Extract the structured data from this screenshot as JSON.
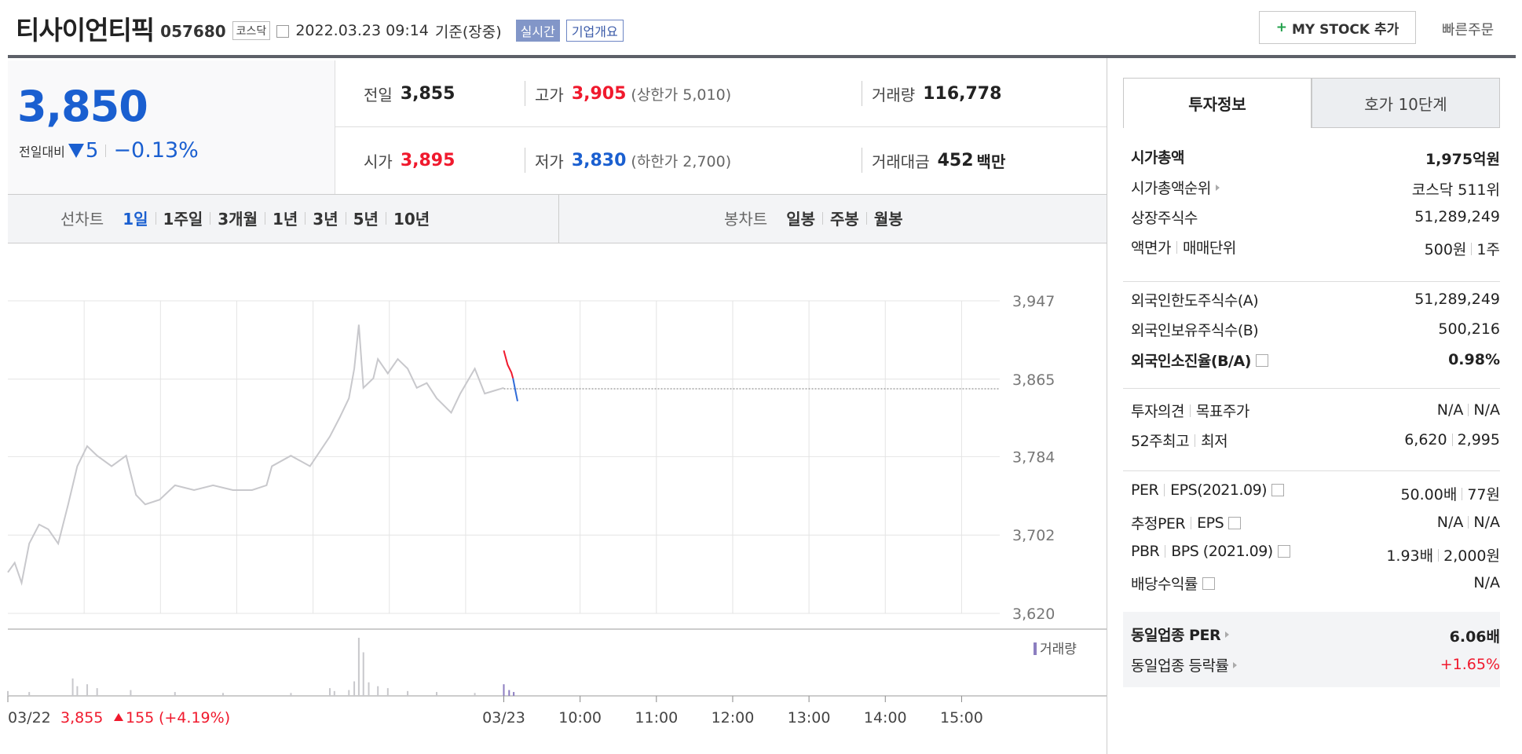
{
  "header": {
    "name": "티사이언티픽",
    "code": "057680",
    "market": "코스닥",
    "datetime": "2022.03.23 09:14",
    "basis": "기준(장중)",
    "realtime": "실시간",
    "company_info": "기업개요",
    "my_stock": "MY STOCK 추가",
    "quick_order": "빠른주문"
  },
  "price": {
    "current": "3,850",
    "change_label": "전일대비",
    "change": "5",
    "change_pct": "−0.13%"
  },
  "stats": [
    [
      {
        "label": "전일",
        "value": "3,855"
      },
      {
        "label": "고가",
        "value": "3,905",
        "note": "(상한가 5,010)",
        "color": "#f0192d"
      },
      {
        "label": "거래량",
        "value": "116,778"
      }
    ],
    [
      {
        "label": "시가",
        "value": "3,895",
        "color": "#f0192d"
      },
      {
        "label": "저가",
        "value": "3,830",
        "note": "(하한가 2,700)",
        "color": "#1a5fd0"
      },
      {
        "label": "거래대금",
        "value": "452",
        "unit": "백만"
      }
    ]
  ],
  "chart_tabs": {
    "line_label": "선차트",
    "line": [
      "1일",
      "1주일",
      "3개월",
      "1년",
      "3년",
      "5년",
      "10년"
    ],
    "line_active": 0,
    "candle_label": "봉차트",
    "candle": [
      "일봉",
      "주봉",
      "월봉"
    ]
  },
  "chart_data": {
    "type": "line",
    "xlim": [
      0,
      13
    ],
    "ylim": [
      3620,
      3947
    ],
    "yticks": [
      {
        "value": 3947,
        "label": "3,947"
      },
      {
        "value": 3865,
        "label": "3,865"
      },
      {
        "value": 3784,
        "label": "3,784"
      },
      {
        "value": 3702,
        "label": "3,702"
      },
      {
        "value": 3620,
        "label": "3,620"
      }
    ],
    "xticks": [
      {
        "value": 0,
        "label": "03/22"
      },
      {
        "value": 6.5,
        "label": "03/23"
      },
      {
        "value": 7.5,
        "label": "10:00"
      },
      {
        "value": 8.5,
        "label": "11:00"
      },
      {
        "value": 9.5,
        "label": "12:00"
      },
      {
        "value": 10.5,
        "label": "13:00"
      },
      {
        "value": 11.5,
        "label": "14:00"
      },
      {
        "value": 12.5,
        "label": "15:00"
      }
    ],
    "grid": true,
    "prev_close": 3855,
    "series": [
      {
        "color": "#c8c8cc",
        "x": [
          0,
          0.09,
          0.18,
          0.28,
          0.41,
          0.53,
          0.66,
          0.79,
          0.91,
          1.04,
          1.17,
          1.36,
          1.55,
          1.68,
          1.8,
          1.99,
          2.19,
          2.44,
          2.69,
          2.95,
          3.2,
          3.39,
          3.46,
          3.71,
          3.96,
          4.22,
          4.35,
          4.47,
          4.54,
          4.6,
          4.66,
          4.79,
          4.85,
          4.98,
          5.11,
          5.24,
          5.36,
          5.49,
          5.62,
          5.81,
          5.93,
          6.12,
          6.25,
          6.5
        ],
        "values": [
          3663,
          3673,
          3652,
          3693,
          3713,
          3708,
          3693,
          3734,
          3774,
          3795,
          3785,
          3774,
          3785,
          3744,
          3734,
          3739,
          3754,
          3749,
          3754,
          3749,
          3749,
          3754,
          3774,
          3785,
          3774,
          3805,
          3825,
          3845,
          3876,
          3922,
          3856,
          3866,
          3886,
          3871,
          3886,
          3876,
          3856,
          3861,
          3845,
          3830,
          3850,
          3876,
          3850,
          3856
        ]
      },
      {
        "color": "#f0192d",
        "x": [
          6.5,
          6.55,
          6.6,
          6.62
        ],
        "values": [
          3895,
          3880,
          3872,
          3866
        ]
      },
      {
        "color": "#2f6bd8",
        "x": [
          6.62,
          6.66,
          6.68
        ],
        "values": [
          3866,
          3850,
          3842
        ]
      }
    ],
    "volume": {
      "legend": "거래량",
      "color": "#8c7ec0",
      "ylim": [
        0,
        30000
      ],
      "x": [
        0,
        0.28,
        0.85,
        0.91,
        1.04,
        1.17,
        1.61,
        2.19,
        2.82,
        3.71,
        4.22,
        4.28,
        4.47,
        4.54,
        4.6,
        4.66,
        4.73,
        4.85,
        4.98,
        5.24,
        5.62,
        6.12,
        6.5,
        6.57,
        6.63
      ],
      "values": [
        2500,
        2000,
        9000,
        5000,
        6000,
        4000,
        3000,
        2000,
        1500,
        1500,
        4000,
        2500,
        3000,
        7500,
        30000,
        22500,
        7000,
        5000,
        4000,
        2500,
        2000,
        1500,
        6000,
        3000,
        2000
      ]
    },
    "prev_day": {
      "close": "3,855",
      "change": "155",
      "change_pct": "(+4.19%)"
    }
  },
  "sidebar": {
    "tabs": [
      "투자정보",
      "호가 10단계"
    ],
    "sections": [
      [
        {
          "label": [
            "시가총액"
          ],
          "value": [
            "1,975억원"
          ],
          "bold": true
        },
        {
          "label": [
            "시가총액순위"
          ],
          "arrow": true,
          "value": [
            "코스닥 511위"
          ]
        },
        {
          "label": [
            "상장주식수"
          ],
          "value": [
            "51,289,249"
          ]
        },
        {
          "label": [
            "액면가",
            "매매단위"
          ],
          "value": [
            "500원",
            "1주"
          ]
        }
      ],
      [
        {
          "label": [
            "외국인한도주식수(A)"
          ],
          "value": [
            "51,289,249"
          ]
        },
        {
          "label": [
            "외국인보유주식수(B)"
          ],
          "value": [
            "500,216"
          ]
        },
        {
          "label": [
            "외국인소진율(B/A)"
          ],
          "help": true,
          "value": [
            "0.98%"
          ],
          "bold": true
        }
      ],
      [
        {
          "label": [
            "투자의견",
            "목표주가"
          ],
          "value": [
            "N/A",
            "N/A"
          ]
        },
        {
          "label": [
            "52주최고",
            "최저"
          ],
          "value": [
            "6,620",
            "2,995"
          ]
        }
      ],
      [
        {
          "label": [
            "PER",
            "EPS(2021.09)"
          ],
          "help": true,
          "value": [
            "50.00배",
            "77원"
          ]
        },
        {
          "label": [
            "추정PER",
            "EPS"
          ],
          "help": true,
          "value": [
            "N/A",
            "N/A"
          ]
        },
        {
          "label": [
            "PBR",
            "BPS (2021.09)"
          ],
          "help": true,
          "value": [
            "1.93배",
            "2,000원"
          ]
        },
        {
          "label": [
            "배당수익률"
          ],
          "help": true,
          "value": [
            "N/A"
          ]
        }
      ],
      [
        {
          "label": [
            "동일업종 PER"
          ],
          "arrow": true,
          "value": [
            "6.06배"
          ],
          "bold": true
        },
        {
          "label": [
            "동일업종 등락률"
          ],
          "arrow": true,
          "value": [
            "+1.65%"
          ],
          "color": "#f0192d"
        }
      ]
    ]
  }
}
